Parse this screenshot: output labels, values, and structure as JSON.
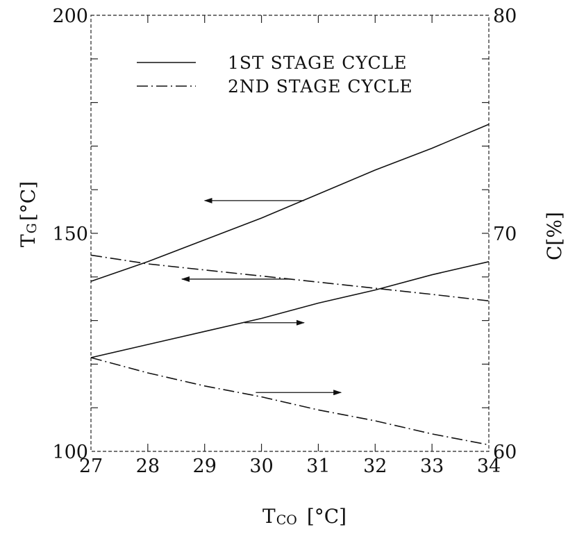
{
  "chart_data": {
    "type": "line",
    "xlabel": "T",
    "xlabel_sub": "CO",
    "xlabel_unit": "[°C]",
    "ylabel_left": "T",
    "ylabel_left_sub": "G",
    "ylabel_left_unit": "[°C]",
    "ylabel_right": "C[%]",
    "xlim": [
      27,
      34
    ],
    "ylim_left": [
      100,
      200
    ],
    "ylim_right": [
      60,
      80
    ],
    "x_ticks": [
      "27",
      "28",
      "29",
      "30",
      "31",
      "32",
      "33",
      "34"
    ],
    "y_left_ticks": [
      "100",
      "150",
      "200"
    ],
    "y_right_ticks": [
      "60",
      "70",
      "80"
    ],
    "grid": false,
    "legend_position": "top-center",
    "legend": [
      {
        "label": "1ST STAGE CYCLE",
        "style": "solid"
      },
      {
        "label": "2ND STAGE CYCLE",
        "style": "dash-dot"
      }
    ],
    "series": [
      {
        "name": "1ST STAGE CYCLE",
        "quantity": "T_G",
        "axis": "left",
        "style": "solid",
        "x": [
          27,
          28,
          29,
          30,
          31,
          32,
          33,
          34
        ],
        "y": [
          139,
          143.5,
          148.5,
          153.5,
          159,
          164.5,
          169.5,
          175
        ]
      },
      {
        "name": "2ND STAGE CYCLE",
        "quantity": "T_G",
        "axis": "left",
        "style": "dash-dot",
        "x": [
          27,
          28,
          29,
          30,
          31,
          32,
          33,
          34
        ],
        "y": [
          145,
          143,
          141.6,
          140.2,
          138.8,
          137.4,
          136,
          134.5
        ]
      },
      {
        "name": "1ST STAGE CYCLE",
        "quantity": "C",
        "axis": "right",
        "style": "solid",
        "x": [
          27,
          28,
          29,
          30,
          31,
          32,
          33,
          34
        ],
        "y": [
          64.3,
          64.9,
          65.5,
          66.1,
          66.8,
          67.4,
          68.1,
          68.7
        ]
      },
      {
        "name": "2ND STAGE CYCLE",
        "quantity": "C",
        "axis": "right",
        "style": "dash-dot",
        "x": [
          27,
          28,
          29,
          30,
          31,
          32,
          33,
          34
        ],
        "y": [
          64.3,
          63.6,
          63,
          62.5,
          61.9,
          61.4,
          60.8,
          60.3
        ]
      }
    ],
    "annotations": [
      {
        "type": "arrow",
        "direction": "left",
        "points_to_axis": "left",
        "series_ref": 0,
        "x_from": 30.75,
        "x_to": 29.0,
        "y_axis_value": 157.5
      },
      {
        "type": "arrow",
        "direction": "left",
        "points_to_axis": "left",
        "series_ref": 1,
        "x_from": 30.5,
        "x_to": 28.6,
        "y_axis_value": 139.5
      },
      {
        "type": "arrow",
        "direction": "right",
        "points_to_axis": "right",
        "series_ref": 2,
        "x_from": 29.7,
        "x_to": 30.75,
        "y_axis_value": 65.9
      },
      {
        "type": "arrow",
        "direction": "right",
        "points_to_axis": "right",
        "series_ref": 3,
        "x_from": 29.9,
        "x_to": 31.4,
        "y_axis_value": 62.7
      }
    ]
  }
}
